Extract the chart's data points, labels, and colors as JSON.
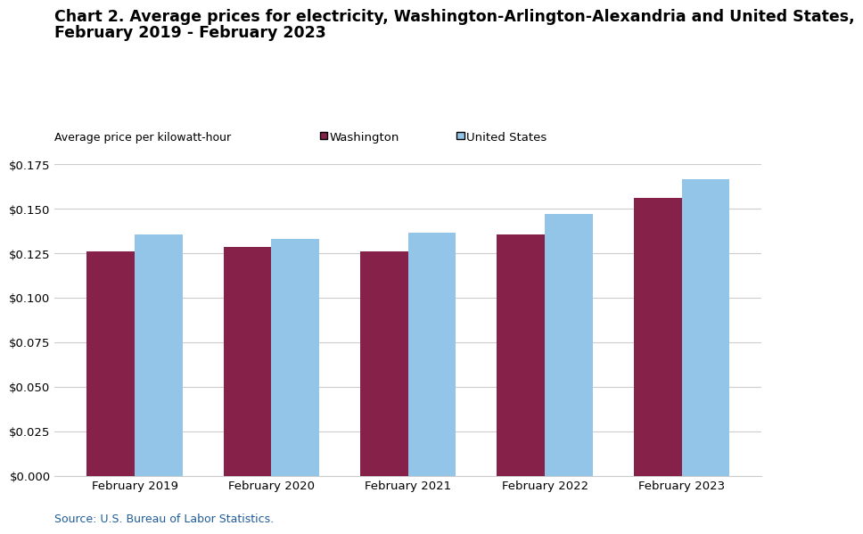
{
  "title_line1": "Chart 2. Average prices for electricity, Washington-Arlington-Alexandria and United States,",
  "title_line2": "February 2019 - February 2023",
  "ylabel": "Average price per kilowatt-hour",
  "categories": [
    "February 2019",
    "February 2020",
    "February 2021",
    "February 2022",
    "February 2023"
  ],
  "washington_values": [
    0.1261,
    0.1285,
    0.126,
    0.1355,
    0.1562
  ],
  "us_values": [
    0.1355,
    0.133,
    0.1365,
    0.1474,
    0.1665
  ],
  "washington_color": "#862249",
  "us_color": "#92C5E8",
  "ylim": [
    0,
    0.175
  ],
  "yticks": [
    0.0,
    0.025,
    0.05,
    0.075,
    0.1,
    0.125,
    0.15,
    0.175
  ],
  "legend_labels": [
    "Washington",
    "United States"
  ],
  "source_text": "Source: U.S. Bureau of Labor Statistics.",
  "source_color": "#1F5C99",
  "bar_width": 0.35,
  "title_fontsize": 12.5,
  "axis_label_fontsize": 9,
  "tick_fontsize": 9.5,
  "legend_fontsize": 9.5,
  "source_fontsize": 9,
  "grid_color": "#CCCCCC"
}
